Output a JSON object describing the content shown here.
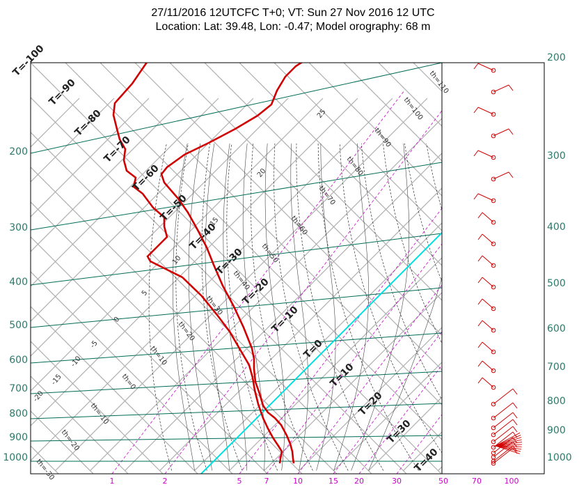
{
  "chart_data": {
    "type": "line",
    "title": "27/11/2016 12UTCFC T+0; VT: Sun 27 Nov 2016 12 UTC",
    "subtitle": "Location: Lat: 39.48, Lon: -0.47; Model orography: 68 m",
    "left_pressure_ticks": [
      "200",
      "300",
      "400",
      "500",
      "600",
      "700",
      "800",
      "900",
      "1000"
    ],
    "left_pressure_values": [
      200,
      300,
      400,
      500,
      600,
      700,
      800,
      900,
      1000
    ],
    "right_pressure_ticks": [
      "200",
      "300",
      "400",
      "500",
      "600",
      "700",
      "800",
      "900",
      "1000"
    ],
    "bottom_mixing_ratio_ticks": [
      "1",
      "2",
      "5",
      "7",
      "10",
      "15",
      "20",
      "30",
      "50",
      "70",
      "100"
    ],
    "isotherm_labels": [
      "T=-100",
      "T=-90",
      "T=-80",
      "T=-70",
      "T=-60",
      "T=-50",
      "T=-40",
      "T=-30",
      "T=-20",
      "T=-10",
      "T=0",
      "T=10",
      "T=20",
      "T=30",
      "T=40"
    ],
    "isotherm_values": [
      -100,
      -90,
      -80,
      -70,
      -60,
      -50,
      -40,
      -30,
      -20,
      -10,
      0,
      10,
      20,
      30,
      40
    ],
    "dry_adiabat_labels": [
      "th=-30",
      "th=-20",
      "th=-10",
      "th=0",
      "th=10",
      "th=20",
      "th=30",
      "th=40",
      "th=50",
      "th=60",
      "th=70",
      "th=80",
      "th=90",
      "th=100",
      "th=110"
    ],
    "moist_adiabat_labels": [
      "-20",
      "-15",
      "-10",
      "-5",
      "0",
      "5",
      "10",
      "15",
      "20",
      "25"
    ],
    "series": [
      {
        "name": "",
        "color": "#d00000",
        "pressure": [
          1000,
          950,
          925,
          900,
          850,
          800,
          750,
          700,
          650,
          600,
          550,
          500,
          450,
          400,
          350,
          300,
          250,
          200
        ],
        "temperature": [
          18.3,
          15.6,
          14.4,
          11.8,
          8.2,
          5.0,
          2.0,
          -0.8,
          -4.0,
          -7.6,
          -11.8,
          -16.5,
          -21.8,
          -28.0,
          -35.2,
          -44.0,
          -54.0,
          -55.0
        ]
      },
      {
        "name": "",
        "color": "#d00000",
        "pressure": [
          1000,
          950,
          925,
          900,
          850,
          800,
          750,
          700,
          650,
          600,
          550,
          500,
          450,
          400,
          350,
          300,
          250,
          200
        ],
        "temperature": [
          10.0,
          10.0,
          11.5,
          6.0,
          3.3,
          0.3,
          -2.3,
          -5.5,
          -10.0,
          -17.0,
          -28.0,
          -39.0,
          -50.0,
          -52.0,
          -62.0,
          -66.0,
          -70.0,
          -72.0
        ]
      }
    ]
  },
  "colors": {
    "pressure_lines": "#006b55",
    "temperature": "#d00000",
    "mixing_ratio": "#cc00cc",
    "freezing_level": "#00e0e0",
    "grid": "#b0b0b0",
    "labels_teal": "#2a7a6a"
  }
}
